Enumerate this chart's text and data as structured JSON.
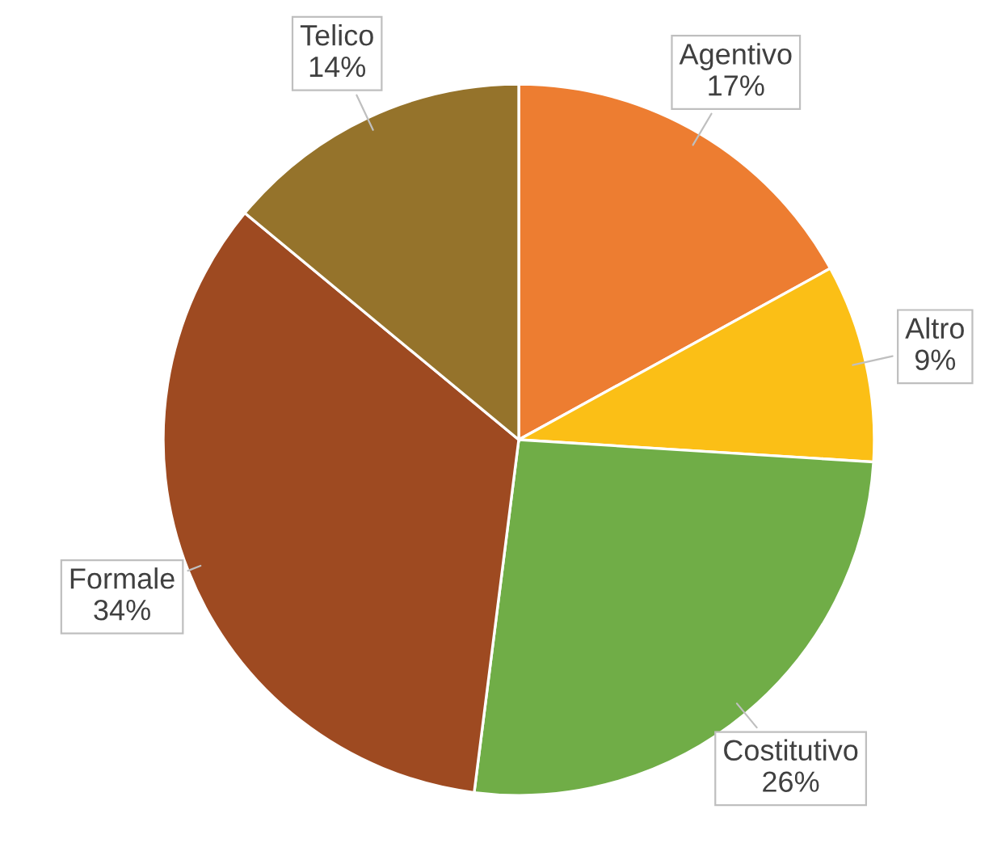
{
  "chart_data": {
    "type": "pie",
    "categories": [
      "Agentivo",
      "Altro",
      "Costitutivo",
      "Formale",
      "Telico"
    ],
    "values": [
      17,
      9,
      26,
      34,
      14
    ],
    "value_labels": [
      "17%",
      "9%",
      "26%",
      "34%",
      "14%"
    ],
    "colors": [
      "#ed7d31",
      "#fbbf16",
      "#70ad47",
      "#9e4a21",
      "#95732b"
    ],
    "legend": false
  }
}
